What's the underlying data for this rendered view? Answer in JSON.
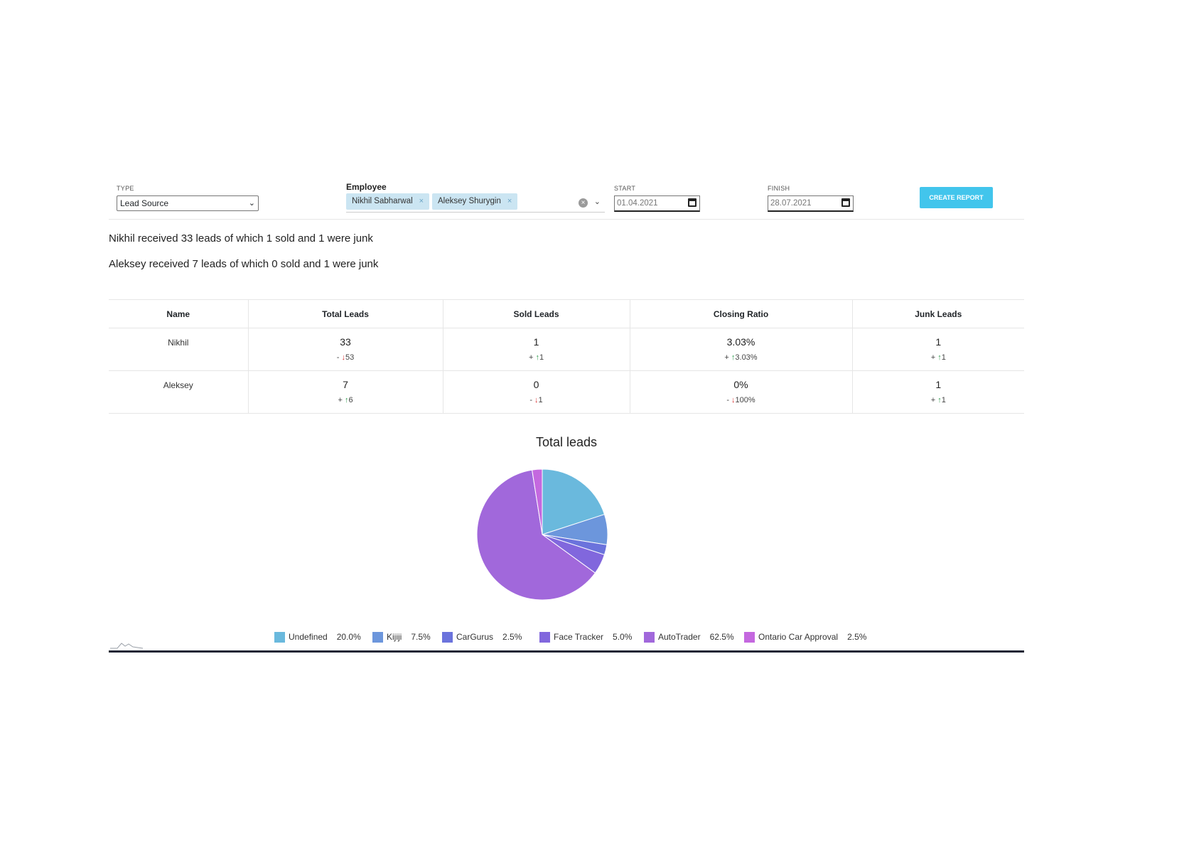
{
  "filters": {
    "type": {
      "label": "TYPE",
      "value": "Lead Source"
    },
    "employee": {
      "label": "Employee",
      "selected": [
        "Nikhil Sabharwal",
        "Aleksey Shurygin"
      ],
      "remove_glyph": "×"
    },
    "start": {
      "label": "START",
      "value": "01.04.2021"
    },
    "finish": {
      "label": "FINISH",
      "value": "28.07.2021"
    },
    "create_label": "CREATE REPORT"
  },
  "summary": [
    "Nikhil received 33 leads of which 1 sold and 1 were junk",
    "Aleksey received 7 leads of which 0 sold and 1 were junk"
  ],
  "table": {
    "headers": [
      "Name",
      "Total Leads",
      "Sold Leads",
      "Closing Ratio",
      "Junk Leads"
    ],
    "rows": [
      {
        "name": "Nikhil",
        "cells": [
          {
            "value": "33",
            "sign": "-",
            "dir": "down",
            "arrow": "↓",
            "delta": "53"
          },
          {
            "value": "1",
            "sign": "+",
            "dir": "up",
            "arrow": "↑",
            "delta": "1"
          },
          {
            "value": "3.03%",
            "sign": "+",
            "dir": "up",
            "arrow": "↑",
            "delta": "3.03%"
          },
          {
            "value": "1",
            "sign": "+",
            "dir": "up",
            "arrow": "↑",
            "delta": "1"
          }
        ]
      },
      {
        "name": "Aleksey",
        "cells": [
          {
            "value": "7",
            "sign": "+",
            "dir": "up",
            "arrow": "↑",
            "delta": "6"
          },
          {
            "value": "0",
            "sign": "-",
            "dir": "down",
            "arrow": "↓",
            "delta": "1"
          },
          {
            "value": "0%",
            "sign": "-",
            "dir": "down",
            "arrow": "↓",
            "delta": "100%"
          },
          {
            "value": "1",
            "sign": "+",
            "dir": "up",
            "arrow": "↑",
            "delta": "1"
          }
        ]
      }
    ]
  },
  "chart_data": {
    "type": "pie",
    "title": "Total leads",
    "legend_position": "bottom",
    "slices": [
      {
        "label": "Undefined",
        "value": 20.0,
        "display": "20.0%",
        "color": "#6ab9dd"
      },
      {
        "label": "Kijiji",
        "value": 7.5,
        "display": "7.5%",
        "color": "#6c96dc"
      },
      {
        "label": "CarGurus",
        "value": 2.5,
        "display": "2.5%",
        "color": "#6b73dc"
      },
      {
        "label": "Face Tracker",
        "value": 5.0,
        "display": "5.0%",
        "color": "#8167dd"
      },
      {
        "label": "AutoTrader",
        "value": 62.5,
        "display": "62.5%",
        "color": "#a168db"
      },
      {
        "label": "Ontario Car Approval",
        "value": 2.5,
        "display": "2.5%",
        "color": "#c468df"
      }
    ]
  },
  "colors": {
    "accent": "#42c5ec",
    "chip_bg": "#cbe5f2",
    "up": "#2e9b4c",
    "down": "#d93434",
    "baseline": "#1e2535"
  }
}
